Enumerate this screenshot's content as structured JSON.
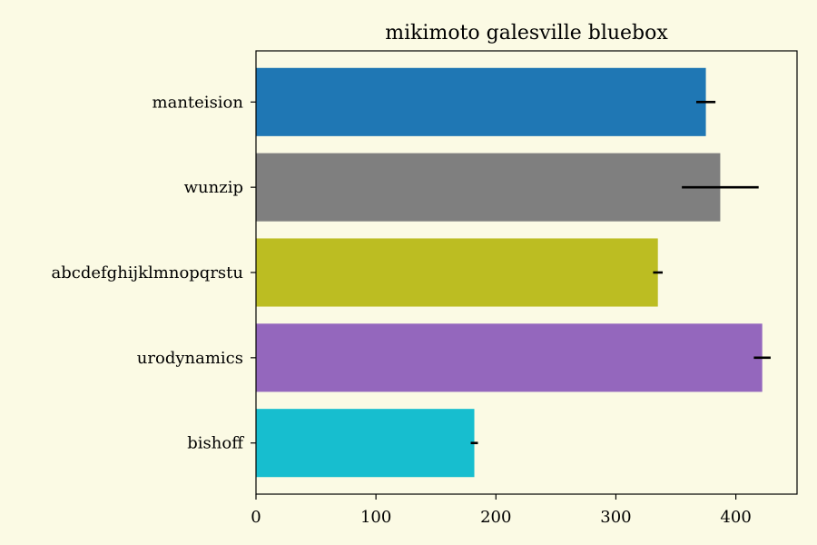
{
  "chart_data": {
    "type": "bar",
    "orientation": "horizontal",
    "title": "mikimoto galesville bluebox",
    "xlabel": "",
    "ylabel": "",
    "xlim": [
      0,
      451
    ],
    "x_ticks": [
      0,
      100,
      200,
      300,
      400
    ],
    "x_tick_labels": [
      "0",
      "100",
      "200",
      "300",
      "400"
    ],
    "grid": false,
    "categories": [
      "manteision",
      "wunzip",
      "abcdefghijklmnopqrstu",
      "urodynamics",
      "bishoff"
    ],
    "values": [
      375,
      387,
      335,
      422,
      182
    ],
    "errors": [
      8,
      32,
      4,
      7,
      3
    ],
    "colors": [
      "#1f77b4",
      "#7f7f7f",
      "#bcbd22",
      "#9467bd",
      "#17becf"
    ],
    "background": "#fbfae4"
  }
}
